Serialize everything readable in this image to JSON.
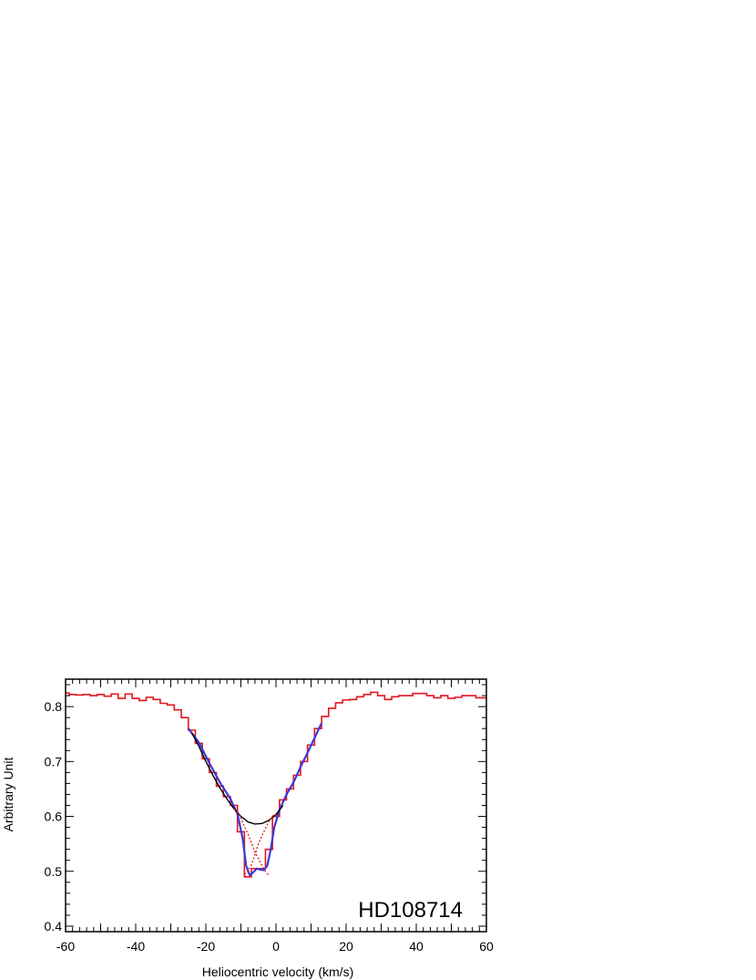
{
  "chart_data": {
    "type": "line",
    "title": "",
    "xlabel": "Heliocentric velocity (km/s)",
    "ylabel": "Arbitrary Unit",
    "xlim": [
      -60,
      60
    ],
    "ylim": [
      0.39,
      0.85
    ],
    "x_ticks": [
      "-60",
      "-40",
      "-20",
      "0",
      "20",
      "40",
      "60"
    ],
    "y_ticks": [
      "0.4",
      "0.5",
      "0.6",
      "0.7",
      "0.8"
    ],
    "grid": false,
    "legend": "none",
    "annotation": "HD108714",
    "colors": {
      "observed": "#e3161b",
      "total_fit": "#3a3ad8",
      "broad_component": "#000000",
      "narrow_components": "#d42020"
    },
    "series": [
      {
        "kind": "observed-spectrum-step",
        "x": [
          -60,
          -58,
          -56,
          -54,
          -52,
          -50,
          -48,
          -46,
          -44,
          -42,
          -40,
          -38,
          -36,
          -34,
          -32,
          -30,
          -28,
          -26,
          -24,
          -22,
          -20,
          -18,
          -16,
          -14,
          -12,
          -10,
          -8,
          -6,
          -4,
          -2,
          0,
          2,
          4,
          6,
          8,
          10,
          12,
          14,
          16,
          18,
          20,
          22,
          24,
          26,
          28,
          30,
          32,
          34,
          36,
          38,
          40,
          42,
          44,
          46,
          48,
          50,
          52,
          54,
          56,
          58,
          60
        ],
        "y": [
          0.825,
          0.822,
          0.821,
          0.822,
          0.82,
          0.822,
          0.819,
          0.823,
          0.815,
          0.823,
          0.815,
          0.811,
          0.817,
          0.813,
          0.806,
          0.803,
          0.794,
          0.78,
          0.757,
          0.733,
          0.705,
          0.68,
          0.655,
          0.636,
          0.62,
          0.572,
          0.49,
          0.505,
          0.505,
          0.54,
          0.6,
          0.63,
          0.65,
          0.675,
          0.7,
          0.73,
          0.76,
          0.782,
          0.797,
          0.807,
          0.812,
          0.813,
          0.818,
          0.822,
          0.826,
          0.82,
          0.813,
          0.818,
          0.82,
          0.82,
          0.824,
          0.824,
          0.82,
          0.816,
          0.82,
          0.815,
          0.817,
          0.82,
          0.82,
          0.816,
          0.816
        ]
      },
      {
        "kind": "total-fit",
        "x": [
          -25,
          -22,
          -19,
          -16,
          -13,
          -11,
          -9.5,
          -8.5,
          -7.5,
          -6.5,
          -5.5,
          -4.5,
          -3.5,
          -2.5,
          -1.5,
          -0.5,
          1,
          3,
          5,
          7,
          9,
          11,
          13
        ],
        "y": [
          0.76,
          0.735,
          0.697,
          0.662,
          0.632,
          0.605,
          0.56,
          0.51,
          0.493,
          0.498,
          0.505,
          0.503,
          0.502,
          0.51,
          0.54,
          0.58,
          0.612,
          0.64,
          0.662,
          0.69,
          0.716,
          0.743,
          0.77
        ]
      },
      {
        "kind": "broad-gaussian-component",
        "x": [
          -24,
          -22,
          -20,
          -18,
          -16,
          -14,
          -12,
          -10,
          -8,
          -6,
          -4,
          -2,
          0,
          2
        ],
        "y": [
          0.752,
          0.728,
          0.7,
          0.675,
          0.652,
          0.632,
          0.614,
          0.6,
          0.59,
          0.586,
          0.587,
          0.593,
          0.603,
          0.62
        ]
      },
      {
        "kind": "narrow-component-1",
        "x": [
          -12,
          -11,
          -10,
          -9,
          -8,
          -7,
          -6,
          -5,
          -4,
          -3,
          -2
        ],
        "y": [
          0.614,
          0.607,
          0.597,
          0.582,
          0.568,
          0.552,
          0.535,
          0.523,
          0.51,
          0.5,
          0.492
        ]
      },
      {
        "kind": "narrow-component-2",
        "x": [
          -9,
          -8,
          -7,
          -6,
          -5,
          -4,
          -3,
          -2,
          -1,
          0
        ],
        "y": [
          0.494,
          0.5,
          0.512,
          0.53,
          0.55,
          0.565,
          0.578,
          0.591,
          0.6,
          0.606
        ]
      }
    ]
  }
}
